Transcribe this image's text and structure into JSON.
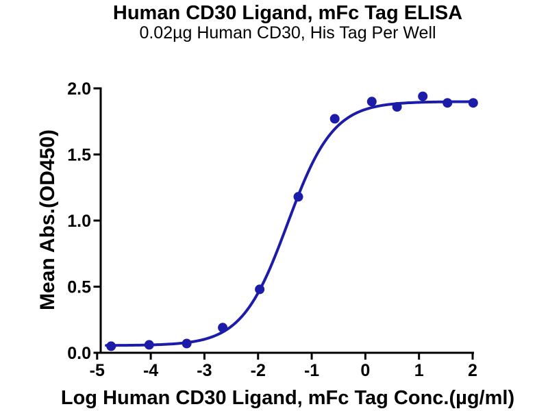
{
  "title": "Human CD30 Ligand, mFc Tag ELISA",
  "subtitle": "0.02µg Human CD30, His Tag Per Well",
  "chart_data": {
    "type": "scatter",
    "title": "Human CD30 Ligand, mFc Tag ELISA",
    "subtitle": "0.02µg Human CD30, His Tag Per Well",
    "xlabel": "Log Human CD30 Ligand, mFc Tag Conc.(µg/ml)",
    "ylabel": "Mean Abs.(OD450)",
    "xlim": [
      -5,
      2
    ],
    "ylim": [
      0.0,
      2.0
    ],
    "x_ticks": [
      -5,
      -4,
      -3,
      -2,
      -1,
      0,
      1,
      2
    ],
    "x_tick_labels": [
      "-5",
      "-4",
      "-3",
      "-2",
      "-1",
      "0",
      "1",
      "2"
    ],
    "y_ticks": [
      0.0,
      0.5,
      1.0,
      1.5,
      2.0
    ],
    "y_tick_labels": [
      "0.0",
      "0.5",
      "1.0",
      "1.5",
      "2.0"
    ],
    "grid": false,
    "legend": false,
    "series_name": "Human CD30 Ligand, mFc Tag",
    "points": {
      "log_conc": [
        -4.74,
        -4.03,
        -3.33,
        -2.66,
        -1.97,
        -1.25,
        -0.57,
        0.12,
        0.59,
        1.07,
        1.53,
        2.01
      ],
      "mean_abs": [
        0.05,
        0.06,
        0.07,
        0.19,
        0.48,
        1.18,
        1.77,
        1.9,
        1.86,
        1.94,
        1.89,
        1.89
      ]
    },
    "fit_curve": {
      "model": "4PL sigmoid",
      "bottom": 0.055,
      "top": 1.9,
      "log_ec50": -1.45,
      "hill_slope": 1.02,
      "x_start": -4.83,
      "x_end": 2.01
    },
    "colors": {
      "series": "#1C1CA8",
      "axis": "#000000",
      "background": "#FFFFFF"
    }
  }
}
